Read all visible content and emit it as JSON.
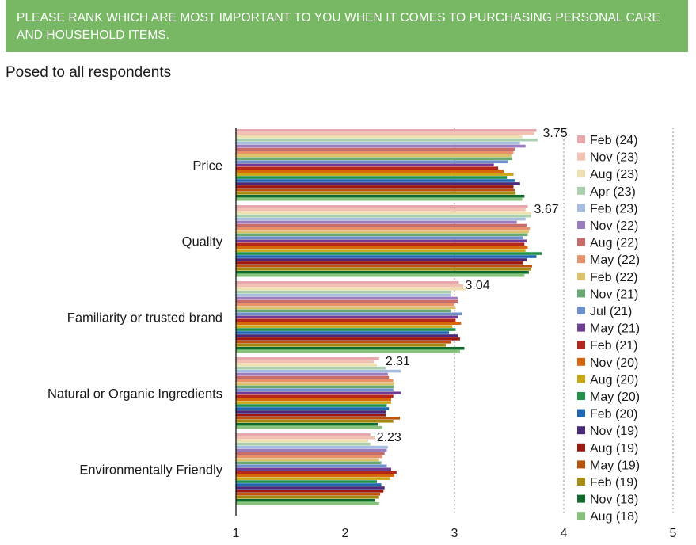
{
  "header": {
    "text": "PLEASE RANK WHICH ARE MOST IMPORTANT TO YOU WHEN IT COMES TO PURCHASING PERSONAL CARE AND HOUSEHOLD ITEMS."
  },
  "subtitle": "Posed to all respondents",
  "colors": {
    "header_bg": "#78b864",
    "text": "#1a1a1a",
    "gridline": "#8c8c8c",
    "axis": "#000000"
  },
  "chart_data": {
    "type": "bar",
    "orientation": "horizontal",
    "title": "",
    "xlim": [
      1,
      5
    ],
    "xticks": [
      "1",
      "2",
      "3",
      "4",
      "5"
    ],
    "grid": "dashed vertical lines at 3, 4 and 5",
    "legend_position": "right",
    "categories": [
      "Price",
      "Quality",
      "Familiarity or trusted brand",
      "Natural or Organic Ingredients",
      "Environmentally Friendly"
    ],
    "labeled_values": [
      "3.75",
      "3.67",
      "3.04",
      "2.31",
      "2.23"
    ],
    "series": [
      {
        "name": "Feb (24)",
        "color": "#e6a8ac",
        "values": [
          3.75,
          3.67,
          3.04,
          2.31,
          2.23
        ]
      },
      {
        "name": "Nov (23)",
        "color": "#f1c2b2",
        "values": [
          3.73,
          3.65,
          3.08,
          2.26,
          2.27
        ]
      },
      {
        "name": "Aug (23)",
        "color": "#f0dfb0",
        "values": [
          3.62,
          3.7,
          3.1,
          2.29,
          2.21
        ]
      },
      {
        "name": "Apr (23)",
        "color": "#a9cfae",
        "values": [
          3.76,
          3.7,
          2.97,
          2.37,
          2.23
        ]
      },
      {
        "name": "Feb (23)",
        "color": "#a7bde0",
        "values": [
          3.6,
          3.65,
          2.97,
          2.51,
          2.39
        ]
      },
      {
        "name": "Nov (22)",
        "color": "#9a7cbf",
        "values": [
          3.65,
          3.57,
          3.03,
          2.39,
          2.38
        ]
      },
      {
        "name": "Aug (22)",
        "color": "#c86b6b",
        "values": [
          3.55,
          3.66,
          3.03,
          2.4,
          2.36
        ]
      },
      {
        "name": "May (22)",
        "color": "#e7916a",
        "values": [
          3.54,
          3.69,
          3.0,
          2.44,
          2.34
        ]
      },
      {
        "name": "Feb (22)",
        "color": "#dcc36a",
        "values": [
          3.52,
          3.68,
          3.01,
          2.45,
          2.31
        ]
      },
      {
        "name": "Nov (21)",
        "color": "#6aa874",
        "values": [
          3.53,
          3.67,
          2.97,
          2.45,
          2.33
        ]
      },
      {
        "name": "Jul (21)",
        "color": "#6e90cc",
        "values": [
          3.49,
          3.63,
          3.07,
          2.44,
          2.38
        ]
      },
      {
        "name": "May (21)",
        "color": "#6f3f95",
        "values": [
          3.36,
          3.66,
          3.03,
          2.51,
          2.42
        ]
      },
      {
        "name": "Feb (21)",
        "color": "#b5261c",
        "values": [
          3.4,
          3.64,
          3.01,
          2.44,
          2.47
        ]
      },
      {
        "name": "Nov (20)",
        "color": "#d7660f",
        "values": [
          3.45,
          3.67,
          3.06,
          2.42,
          2.45
        ]
      },
      {
        "name": "Aug (20)",
        "color": "#c9a615",
        "values": [
          3.54,
          3.65,
          2.98,
          2.42,
          2.41
        ]
      },
      {
        "name": "May (20)",
        "color": "#21914a",
        "values": [
          3.48,
          3.8,
          3.01,
          2.38,
          2.29
        ]
      },
      {
        "name": "Feb (20)",
        "color": "#1f67b2",
        "values": [
          3.55,
          3.75,
          2.95,
          2.4,
          2.33
        ]
      },
      {
        "name": "Nov (19)",
        "color": "#4a2a7a",
        "values": [
          3.6,
          3.66,
          3.03,
          2.37,
          2.36
        ]
      },
      {
        "name": "Aug (19)",
        "color": "#9a1a10",
        "values": [
          3.54,
          3.63,
          3.05,
          2.37,
          2.35
        ]
      },
      {
        "name": "May (19)",
        "color": "#b8540c",
        "values": [
          3.55,
          3.71,
          2.97,
          2.5,
          2.32
        ]
      },
      {
        "name": "Feb (19)",
        "color": "#a68c12",
        "values": [
          3.56,
          3.7,
          2.92,
          2.44,
          2.31
        ]
      },
      {
        "name": "Nov (18)",
        "color": "#0f6b2c",
        "values": [
          3.64,
          3.68,
          3.09,
          2.3,
          2.27
        ]
      },
      {
        "name": "Aug (18)",
        "color": "#87c27a",
        "values": [
          3.62,
          3.64,
          3.05,
          2.34,
          2.31
        ]
      }
    ]
  }
}
